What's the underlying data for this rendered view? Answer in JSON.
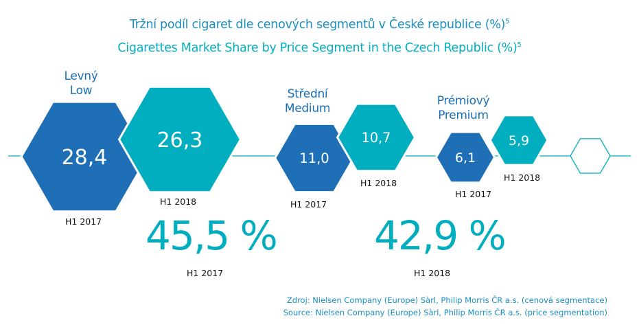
{
  "title_cz": "Tržní podíl cigaret dle cenových segmentů v České republice (%)",
  "title_en": "Cigarettes Market Share by Price Segment in the Czech Republic (%)",
  "footnote_ref": "5",
  "colors": {
    "h1_2017": "#1f6fb6",
    "h1_2018": "#00aec0",
    "title": "#1a8fc4",
    "line": "#00aec0"
  },
  "chart_data": {
    "type": "bar",
    "categories": [
      {
        "label_cz": "Levný",
        "label_en": "Low"
      },
      {
        "label_cz": "Střední",
        "label_en": "Medium"
      },
      {
        "label_cz": "Prémiový",
        "label_en": "Premium"
      }
    ],
    "series": [
      {
        "name": "H1 2017",
        "values": [
          28.4,
          11.0,
          6.1
        ],
        "labels": [
          "28,4",
          "11,0",
          "6,1"
        ]
      },
      {
        "name": "H1 2018",
        "values": [
          26.3,
          10.7,
          5.9
        ],
        "labels": [
          "26,3",
          "10,7",
          "5,9"
        ]
      }
    ],
    "totals": [
      {
        "value": "45,5 %",
        "period": "H1 2017"
      },
      {
        "value": "42,9 %",
        "period": "H1 2018"
      }
    ]
  },
  "source_cz": "Zdroj: Nielsen Company (Europe) Sàrl, Philip Morris ČR a.s. (cenová segmentace)",
  "source_en": "Source: Nielsen Company (Europe) Sàrl, Philip Morris ČR a.s. (price segmentation)"
}
